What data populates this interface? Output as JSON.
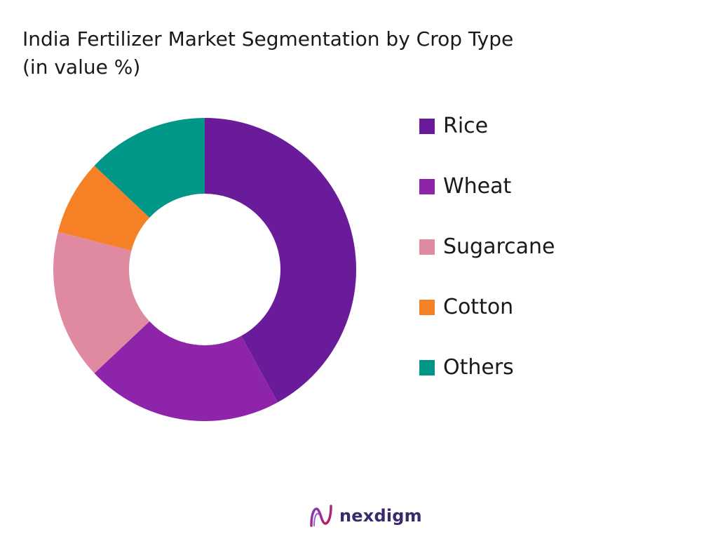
{
  "title_line1": "India Fertilizer Market Segmentation by Crop Type",
  "title_line2": "(in value %)",
  "brand": "nexdigm",
  "chart_data": {
    "type": "pie",
    "donut": true,
    "title": "India Fertilizer Market Segmentation by Crop Type (in value %)",
    "legend": "right",
    "series": [
      {
        "name": "Rice",
        "value": 42,
        "color": "#6a1b9a"
      },
      {
        "name": "Wheat",
        "value": 21,
        "color": "#8e24aa"
      },
      {
        "name": "Sugarcane",
        "value": 16,
        "color": "#df8aa0"
      },
      {
        "name": "Cotton",
        "value": 8,
        "color": "#f58025"
      },
      {
        "name": "Others",
        "value": 13,
        "color": "#009688"
      }
    ]
  }
}
